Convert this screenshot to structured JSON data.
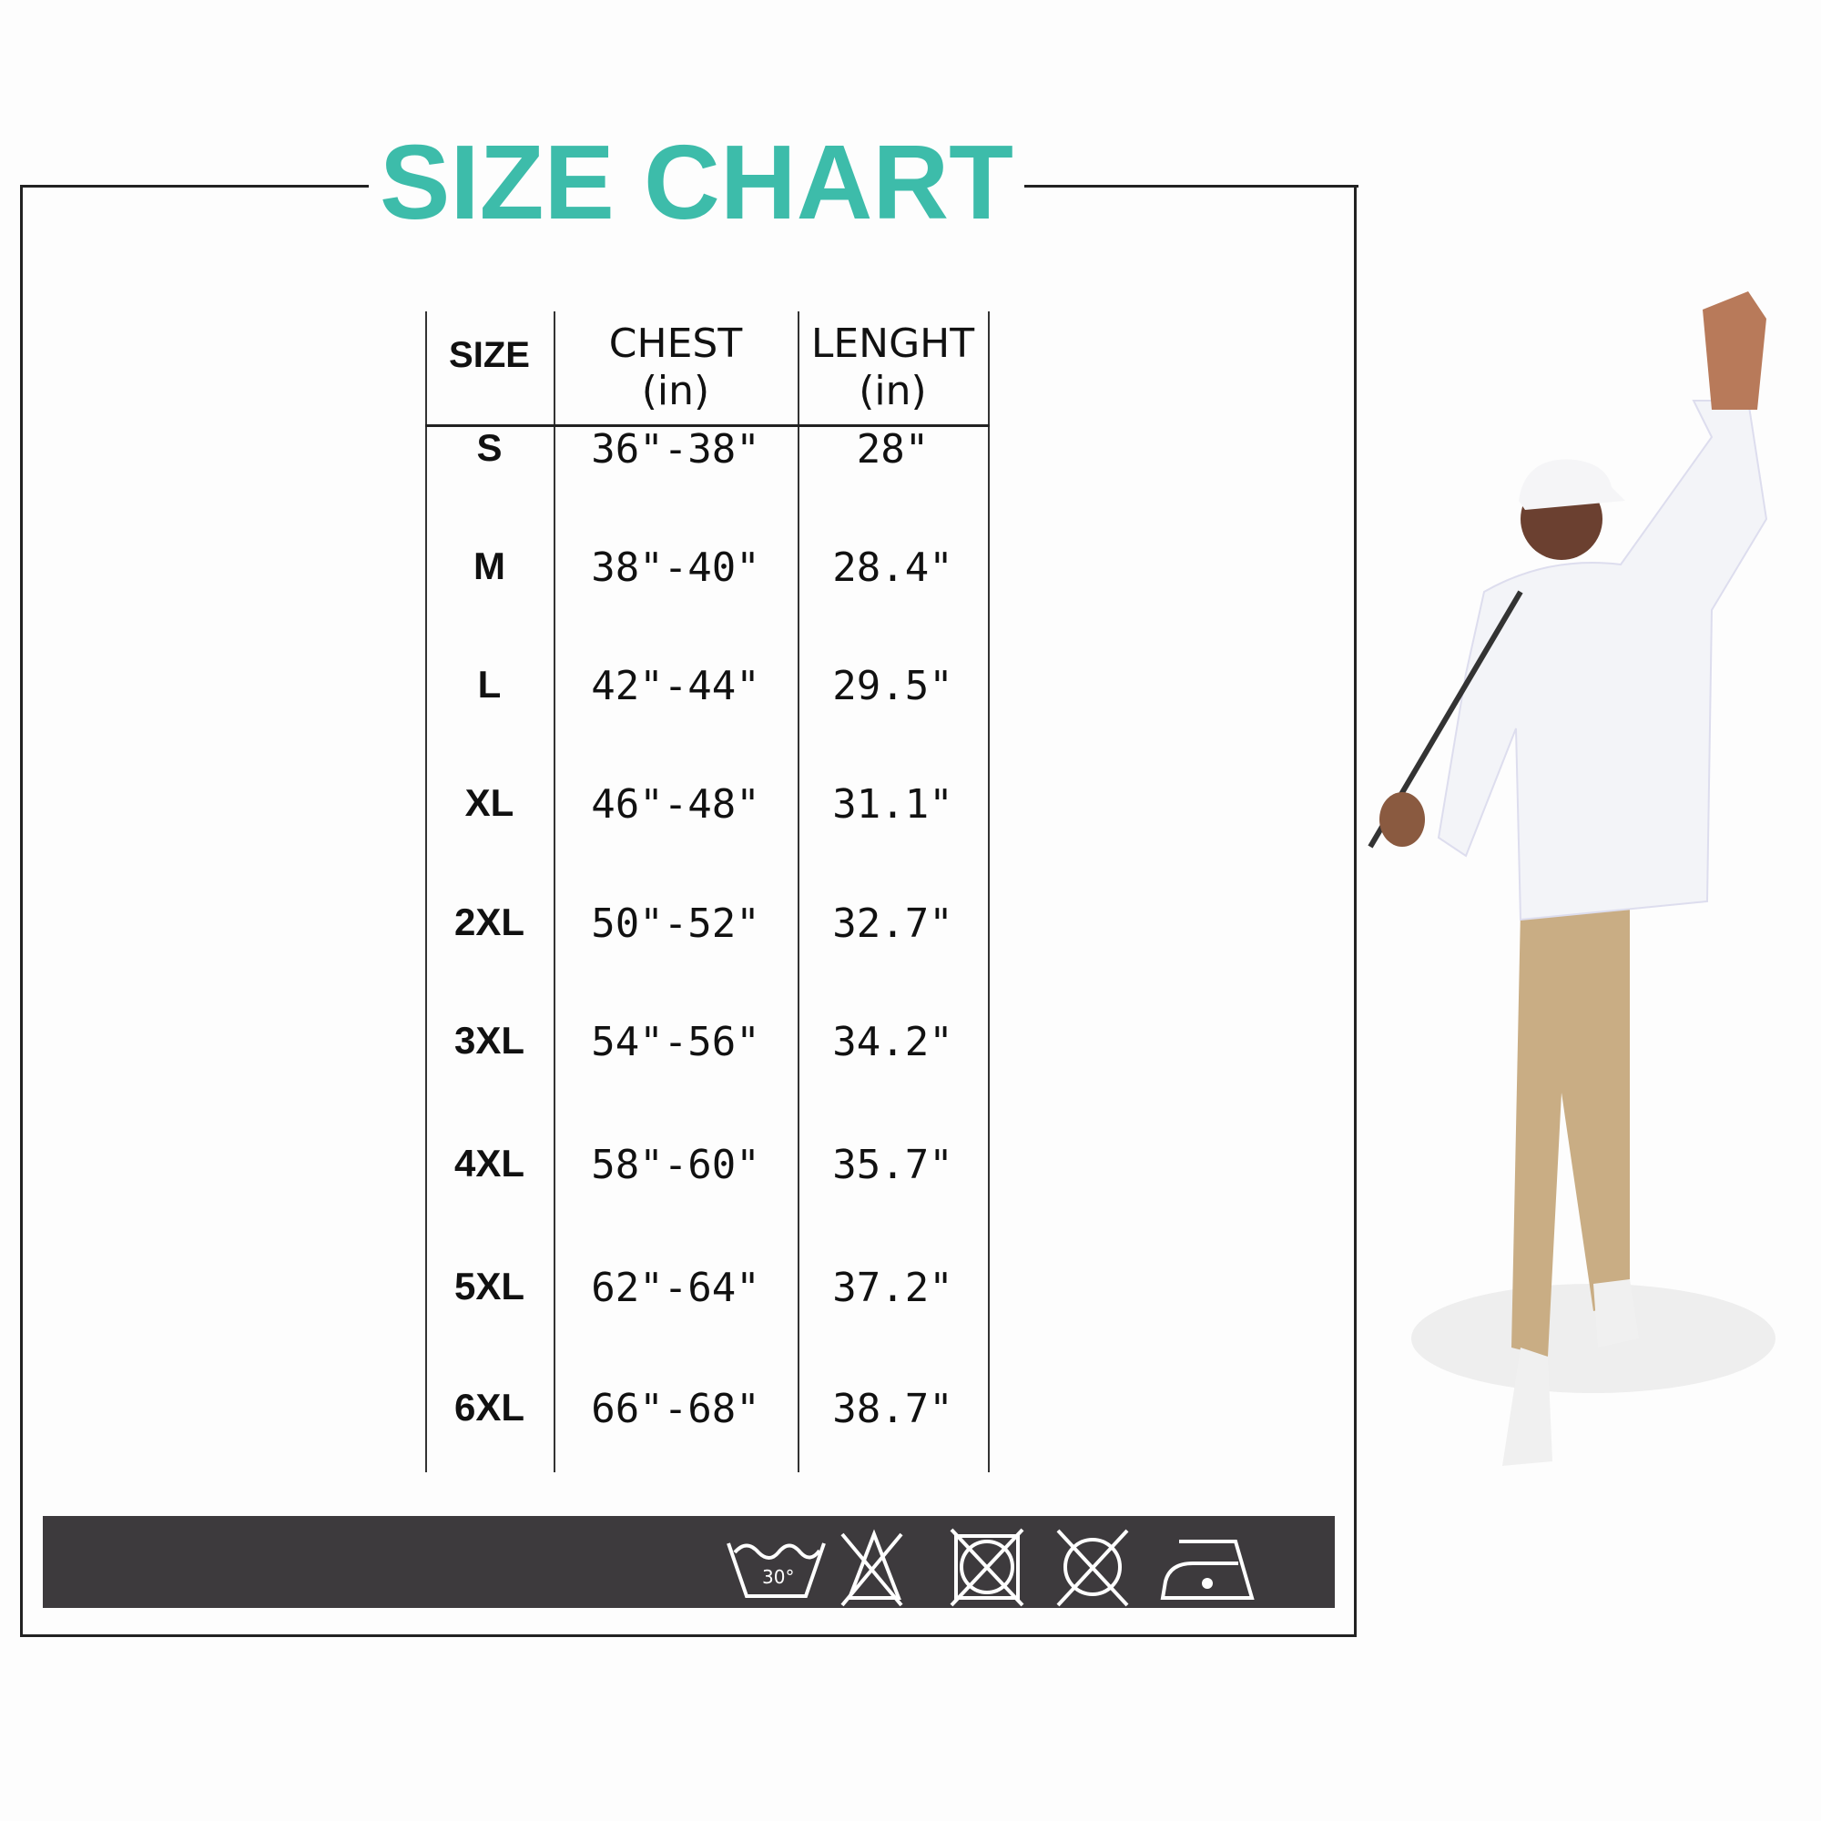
{
  "title": "SIZE CHART",
  "colors": {
    "title": "#3dbcaa",
    "band": "#3d3a3d"
  },
  "table": {
    "headers": [
      {
        "label": "SIZE",
        "unit": ""
      },
      {
        "label": "CHEST",
        "unit": "(in)"
      },
      {
        "label": "LENGHT",
        "unit": "(in)"
      }
    ],
    "rows": [
      {
        "size": "S",
        "chest": "36\"-38\"",
        "length": "28\""
      },
      {
        "size": "M",
        "chest": "38\"-40\"",
        "length": "28.4\""
      },
      {
        "size": "L",
        "chest": "42\"-44\"",
        "length": "29.5\""
      },
      {
        "size": "XL",
        "chest": "46\"-48\"",
        "length": "31.1\""
      },
      {
        "size": "2XL",
        "chest": "50\"-52\"",
        "length": "32.7\""
      },
      {
        "size": "3XL",
        "chest": "54\"-56\"",
        "length": "34.2\""
      },
      {
        "size": "4XL",
        "chest": "58\"-60\"",
        "length": "35.7\""
      },
      {
        "size": "5XL",
        "chest": "62\"-64\"",
        "length": "37.2\""
      },
      {
        "size": "6XL",
        "chest": "66\"-68\"",
        "length": "38.7\""
      }
    ]
  },
  "care_icons": [
    {
      "name": "wash-30-icon",
      "label": "30°"
    },
    {
      "name": "do-not-bleach-icon"
    },
    {
      "name": "do-not-tumble-dry-icon"
    },
    {
      "name": "do-not-dry-clean-icon"
    },
    {
      "name": "iron-low-icon"
    }
  ]
}
